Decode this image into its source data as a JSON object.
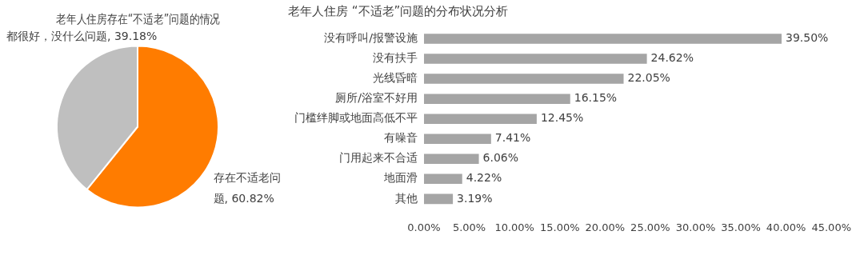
{
  "chart_data": [
    {
      "type": "pie",
      "title": "老年人住房存在“不适老”问题的情况",
      "categories": [
        "存在不适老问题",
        "都很好，没什么问题"
      ],
      "values": [
        60.82,
        39.18
      ],
      "value_labels": [
        "60.82%",
        "39.18%"
      ],
      "colors": [
        "#ff7c00",
        "#bfbfbf"
      ],
      "data_labels": true,
      "legend": false
    },
    {
      "type": "bar",
      "orientation": "horizontal",
      "title": "老年人住房 “不适老”问题的分布状况分析",
      "categories": [
        "没有呼叫/报警设施",
        "没有扶手",
        "光线昏暗",
        "厕所/浴室不好用",
        "门槛绊脚或地面高低不平",
        "有噪音",
        "门用起来不合适",
        "地面滑",
        "其他"
      ],
      "values": [
        39.5,
        24.62,
        22.05,
        16.15,
        12.45,
        7.41,
        6.06,
        4.22,
        3.19
      ],
      "value_labels": [
        "39.50%",
        "24.62%",
        "22.05%",
        "16.15%",
        "12.45%",
        "7.41%",
        "6.06%",
        "4.22%",
        "3.19%"
      ],
      "color": "#a5a5a5",
      "xlim": [
        0,
        45
      ],
      "xticks": [
        {
          "value": 0,
          "label": "0.00%"
        },
        {
          "value": 5,
          "label": "5.00%"
        },
        {
          "value": 10,
          "label": "10.00%"
        },
        {
          "value": 15,
          "label": "15.00%"
        },
        {
          "value": 20,
          "label": "20.00%"
        },
        {
          "value": 25,
          "label": "25.00%"
        },
        {
          "value": 30,
          "label": "30.00%"
        },
        {
          "value": 35,
          "label": "35.00%"
        },
        {
          "value": 40,
          "label": "40.00%"
        },
        {
          "value": 45,
          "label": "45.00%"
        }
      ],
      "grid": false,
      "legend": false
    }
  ]
}
